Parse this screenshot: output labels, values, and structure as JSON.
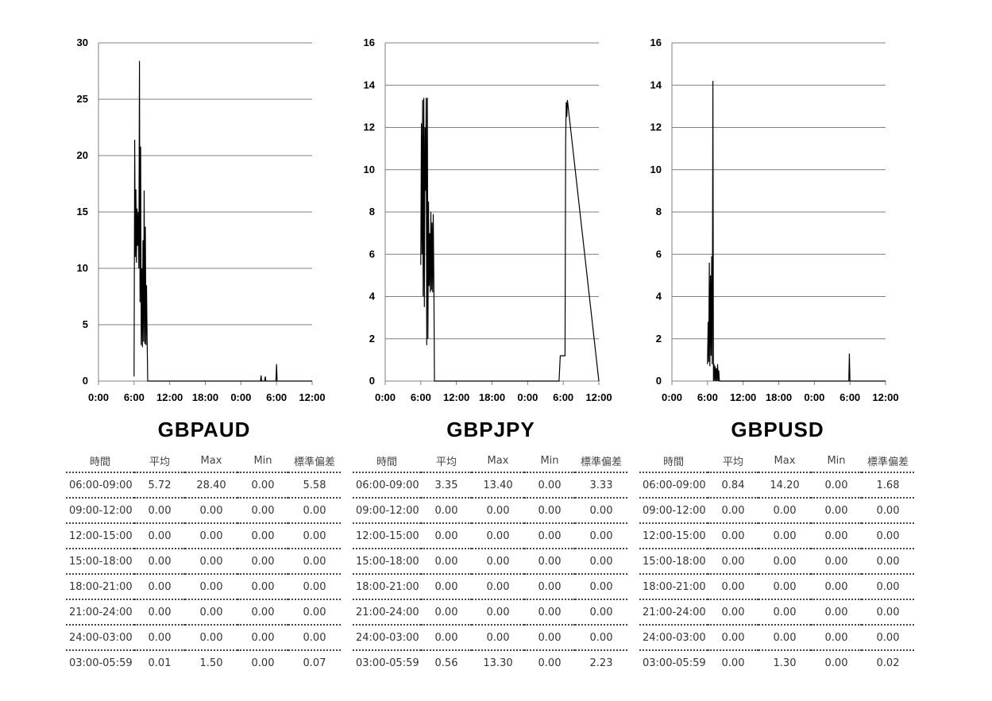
{
  "chart_data": [
    {
      "type": "line",
      "title": "GBPAUD",
      "ylim": [
        0,
        30
      ],
      "yticks": [
        0,
        5,
        10,
        15,
        20,
        25,
        30
      ],
      "xlim": [
        0,
        36
      ],
      "xticks": [
        "0:00",
        "6:00",
        "12:00",
        "18:00",
        "0:00",
        "6:00",
        "12:00"
      ],
      "grid": true,
      "series": [
        {
          "x": [
            6.0,
            6.1,
            6.2,
            6.3,
            6.4,
            6.5,
            6.6,
            6.7,
            6.8,
            6.9,
            7.0,
            7.1,
            7.2,
            7.3,
            7.4,
            7.5,
            7.6,
            7.7,
            7.8,
            7.9,
            8.0,
            8.1,
            8.2,
            8.3,
            8.4,
            8.5,
            8.6,
            8.7,
            8.8,
            9.0,
            12,
            18,
            24,
            27.3,
            27.4,
            27.5,
            28.0,
            28.1,
            28.2,
            29.9,
            30.0,
            30.1,
            36
          ],
          "y": [
            0.4,
            21.4,
            11,
            17,
            10.5,
            15.3,
            12,
            15,
            10,
            28.4,
            7,
            20.8,
            3.2,
            10,
            3,
            12.5,
            3.5,
            16.9,
            3.3,
            13.7,
            3.2,
            8.5,
            3.4,
            0,
            0,
            0,
            0,
            0,
            0,
            0,
            0,
            0,
            0,
            0,
            0.5,
            0,
            0,
            0.4,
            0,
            0,
            1.5,
            0,
            0
          ]
        }
      ]
    },
    {
      "type": "line",
      "title": "GBPJPY",
      "ylim": [
        0,
        16
      ],
      "yticks": [
        0,
        2,
        4,
        6,
        8,
        10,
        12,
        14,
        16
      ],
      "xlim": [
        0,
        36
      ],
      "xticks": [
        "0:00",
        "6:00",
        "12:00",
        "18:00",
        "0:00",
        "6:00",
        "12:00"
      ],
      "grid": true,
      "series": [
        {
          "x": [
            6.0,
            6.1,
            6.2,
            6.3,
            6.4,
            6.5,
            6.6,
            6.7,
            6.8,
            6.9,
            7.0,
            7.1,
            7.2,
            7.3,
            7.4,
            7.5,
            7.6,
            7.7,
            7.8,
            7.9,
            8.0,
            8.1,
            8.2,
            8.3,
            8.4,
            8.5,
            8.6,
            8.7,
            8.8,
            8.9,
            9.0,
            12,
            18,
            24,
            29.3,
            29.5,
            29.6,
            30.3,
            30.4,
            30.5,
            30.6,
            30.7,
            36
          ],
          "y": [
            5.5,
            12.2,
            6,
            13.3,
            4,
            13.4,
            3.5,
            12,
            9,
            13.4,
            1.7,
            13.4,
            2,
            8.5,
            4.5,
            7,
            4.2,
            8,
            4.3,
            7.5,
            4.2,
            7.9,
            4.5,
            0,
            0,
            0,
            0,
            0,
            0,
            0,
            0,
            0,
            0,
            0,
            0,
            1.2,
            1.2,
            1.2,
            11.3,
            13.2,
            12.5,
            13.3,
            0
          ]
        }
      ]
    },
    {
      "type": "line",
      "title": "GBPUSD",
      "ylim": [
        0,
        16
      ],
      "yticks": [
        0,
        2,
        4,
        6,
        8,
        10,
        12,
        14,
        16
      ],
      "xlim": [
        0,
        36
      ],
      "xticks": [
        "0:00",
        "6:00",
        "12:00",
        "18:00",
        "0:00",
        "6:00",
        "12:00"
      ],
      "grid": true,
      "series": [
        {
          "x": [
            6.0,
            6.1,
            6.2,
            6.3,
            6.4,
            6.5,
            6.6,
            6.7,
            6.8,
            6.9,
            7.0,
            7.1,
            7.2,
            7.3,
            7.4,
            7.5,
            7.6,
            7.7,
            7.8,
            7.9,
            8.0,
            8.1,
            8.2,
            8.3,
            9.0,
            12,
            18,
            24,
            29.8,
            29.9,
            30.0,
            30.1,
            36
          ],
          "y": [
            0.8,
            2.8,
            0.9,
            5.6,
            0.7,
            5.0,
            1.2,
            5.9,
            0.8,
            14.2,
            0,
            0.8,
            0,
            0.7,
            0,
            0.6,
            0,
            0.8,
            0,
            0.5,
            0,
            0,
            0,
            0,
            0,
            0,
            0,
            0,
            0,
            1.3,
            0,
            0,
            0
          ]
        }
      ]
    }
  ],
  "tables": [
    {
      "title": "GBPAUD",
      "headers": [
        "時間",
        "平均",
        "Max",
        "Min",
        "標準偏差"
      ],
      "rows": [
        [
          "06:00-09:00",
          "5.72",
          "28.40",
          "0.00",
          "5.58"
        ],
        [
          "09:00-12:00",
          "0.00",
          "0.00",
          "0.00",
          "0.00"
        ],
        [
          "12:00-15:00",
          "0.00",
          "0.00",
          "0.00",
          "0.00"
        ],
        [
          "15:00-18:00",
          "0.00",
          "0.00",
          "0.00",
          "0.00"
        ],
        [
          "18:00-21:00",
          "0.00",
          "0.00",
          "0.00",
          "0.00"
        ],
        [
          "21:00-24:00",
          "0.00",
          "0.00",
          "0.00",
          "0.00"
        ],
        [
          "24:00-03:00",
          "0.00",
          "0.00",
          "0.00",
          "0.00"
        ],
        [
          "03:00-05:59",
          "0.01",
          "1.50",
          "0.00",
          "0.07"
        ]
      ]
    },
    {
      "title": "GBPJPY",
      "headers": [
        "時間",
        "平均",
        "Max",
        "Min",
        "標準偏差"
      ],
      "rows": [
        [
          "06:00-09:00",
          "3.35",
          "13.40",
          "0.00",
          "3.33"
        ],
        [
          "09:00-12:00",
          "0.00",
          "0.00",
          "0.00",
          "0.00"
        ],
        [
          "12:00-15:00",
          "0.00",
          "0.00",
          "0.00",
          "0.00"
        ],
        [
          "15:00-18:00",
          "0.00",
          "0.00",
          "0.00",
          "0.00"
        ],
        [
          "18:00-21:00",
          "0.00",
          "0.00",
          "0.00",
          "0.00"
        ],
        [
          "21:00-24:00",
          "0.00",
          "0.00",
          "0.00",
          "0.00"
        ],
        [
          "24:00-03:00",
          "0.00",
          "0.00",
          "0.00",
          "0.00"
        ],
        [
          "03:00-05:59",
          "0.56",
          "13.30",
          "0.00",
          "2.23"
        ]
      ]
    },
    {
      "title": "GBPUSD",
      "headers": [
        "時間",
        "平均",
        "Max",
        "Min",
        "標準偏差"
      ],
      "rows": [
        [
          "06:00-09:00",
          "0.84",
          "14.20",
          "0.00",
          "1.68"
        ],
        [
          "09:00-12:00",
          "0.00",
          "0.00",
          "0.00",
          "0.00"
        ],
        [
          "12:00-15:00",
          "0.00",
          "0.00",
          "0.00",
          "0.00"
        ],
        [
          "15:00-18:00",
          "0.00",
          "0.00",
          "0.00",
          "0.00"
        ],
        [
          "18:00-21:00",
          "0.00",
          "0.00",
          "0.00",
          "0.00"
        ],
        [
          "21:00-24:00",
          "0.00",
          "0.00",
          "0.00",
          "0.00"
        ],
        [
          "24:00-03:00",
          "0.00",
          "0.00",
          "0.00",
          "0.00"
        ],
        [
          "03:00-05:59",
          "0.00",
          "1.30",
          "0.00",
          "0.02"
        ]
      ]
    }
  ]
}
